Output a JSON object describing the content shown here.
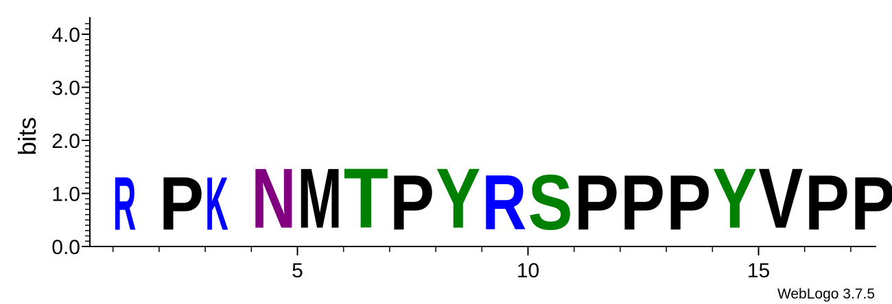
{
  "chart_data": {
    "type": "sequence-logo",
    "ylabel": "bits",
    "ylim": [
      0,
      4.3
    ],
    "y_ticks": [
      "0.0",
      "1.0",
      "2.0",
      "3.0",
      "4.0"
    ],
    "x_ticks": [
      "5",
      "10",
      "15"
    ],
    "credit": "WebLogo 3.7.5",
    "colors": {
      "basic": "#0000ff",
      "hydrophobic": "#000000",
      "polar": "#008000",
      "amide": "#800080"
    },
    "positions": [
      {
        "pos": 1,
        "letter": "R",
        "bits": 1.6,
        "color": "#0000ff"
      },
      {
        "pos": 2,
        "letter": "P",
        "bits": 1.6,
        "color": "#000000"
      },
      {
        "pos": 3,
        "letter": "K",
        "bits": 1.6,
        "color": "#0000ff"
      },
      {
        "pos": 4,
        "letter": "N",
        "bits": 1.8,
        "color": "#800080"
      },
      {
        "pos": 5,
        "letter": "M",
        "bits": 1.8,
        "color": "#000000"
      },
      {
        "pos": 6,
        "letter": "T",
        "bits": 1.8,
        "color": "#008000"
      },
      {
        "pos": 7,
        "letter": "P",
        "bits": 1.65,
        "color": "#000000"
      },
      {
        "pos": 8,
        "letter": "Y",
        "bits": 1.8,
        "color": "#008000"
      },
      {
        "pos": 9,
        "letter": "R",
        "bits": 1.65,
        "color": "#0000ff"
      },
      {
        "pos": 10,
        "letter": "S",
        "bits": 1.65,
        "color": "#008000"
      },
      {
        "pos": 11,
        "letter": "P",
        "bits": 1.65,
        "color": "#000000"
      },
      {
        "pos": 12,
        "letter": "P",
        "bits": 1.65,
        "color": "#000000"
      },
      {
        "pos": 13,
        "letter": "P",
        "bits": 1.65,
        "color": "#000000"
      },
      {
        "pos": 14,
        "letter": "Y",
        "bits": 1.8,
        "color": "#008000"
      },
      {
        "pos": 15,
        "letter": "V",
        "bits": 1.8,
        "color": "#000000"
      },
      {
        "pos": 16,
        "letter": "P",
        "bits": 1.65,
        "color": "#000000"
      },
      {
        "pos": 17,
        "letter": "P",
        "bits": 1.6,
        "color": "#000000"
      }
    ]
  }
}
